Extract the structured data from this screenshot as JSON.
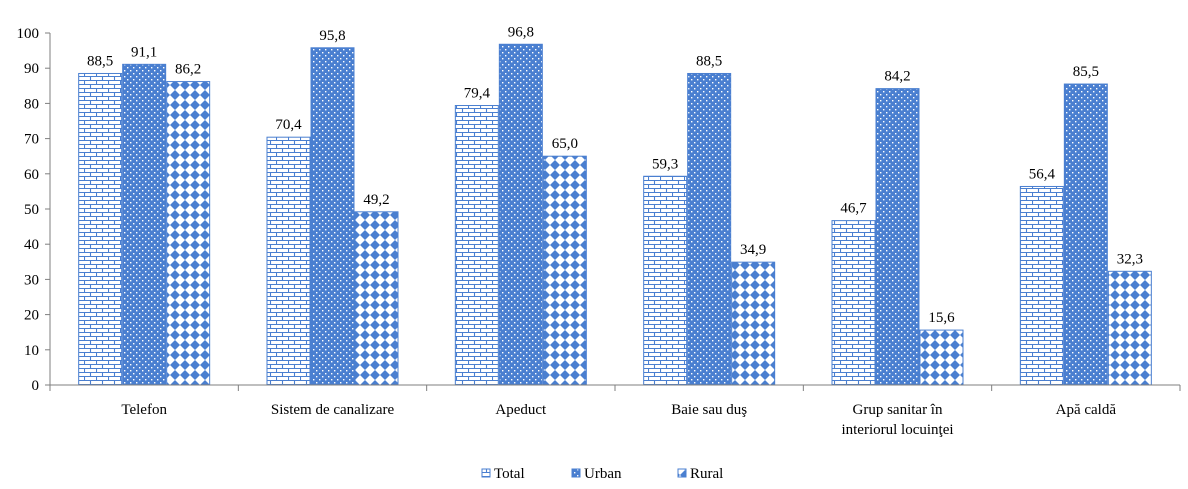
{
  "chart_data": {
    "type": "bar",
    "categories": [
      [
        "Telefon"
      ],
      [
        "Sistem de canalizare"
      ],
      [
        "Apeduct"
      ],
      [
        "Baie sau duş"
      ],
      [
        "Grup sanitar în",
        "interiorul locuinţei"
      ],
      [
        "Apă caldă"
      ]
    ],
    "series": [
      {
        "name": "Total",
        "values": [
          88.5,
          70.4,
          79.4,
          59.3,
          46.7,
          56.4
        ],
        "labels": [
          "88,5",
          "70,4",
          "79,4",
          "59,3",
          "46,7",
          "56,4"
        ],
        "color": "#4a7fd0"
      },
      {
        "name": "Urban",
        "values": [
          91.1,
          95.8,
          96.8,
          88.5,
          84.2,
          85.5
        ],
        "labels": [
          "91,1",
          "95,8",
          "96,8",
          "88,5",
          "84,2",
          "85,5"
        ],
        "color": "#4a7fd0"
      },
      {
        "name": "Rural",
        "values": [
          86.2,
          49.2,
          65.0,
          34.9,
          15.6,
          32.3
        ],
        "labels": [
          "86,2",
          "49,2",
          "65,0",
          "34,9",
          "15,6",
          "32,3"
        ],
        "color": "#4a7fd0"
      }
    ],
    "yticks": [
      "0",
      "10",
      "20",
      "30",
      "40",
      "50",
      "60",
      "70",
      "80",
      "90",
      "100"
    ],
    "ylim": [
      0,
      100
    ],
    "grid": false,
    "legend_position": "bottom"
  }
}
